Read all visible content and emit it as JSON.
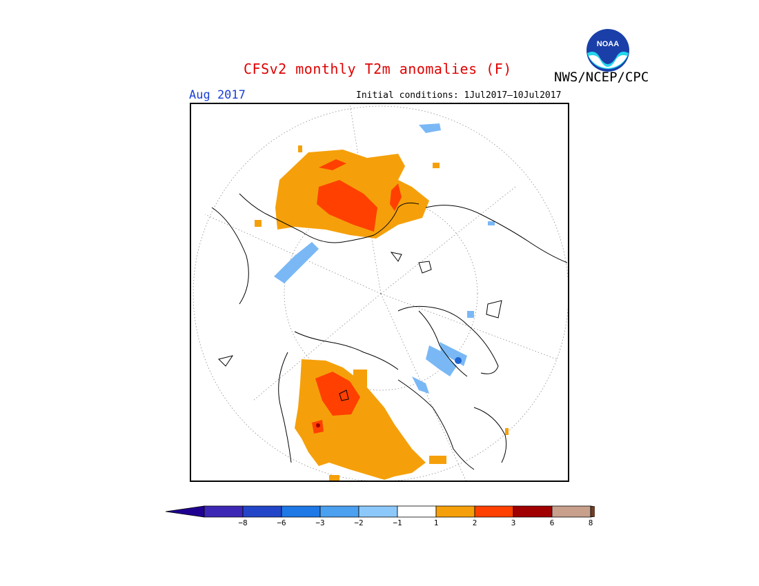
{
  "title": "CFSv2 monthly T2m anomalies (F)",
  "agency": "NWS/NCEP/CPC",
  "logo_text": "NOAA",
  "valid_month": "Aug 2017",
  "initial_conditions": "Initial conditions: 1Jul2017–10Jul2017",
  "colors": {
    "title": "#e00000",
    "month": "#1a3fd6",
    "warm_1_2": "#f5a00a",
    "warm_2_3": "#ff4000",
    "warm_3_6": "#a00000",
    "cool_1_2": "#7ab8f5",
    "cool_2_3": "#4a9aef",
    "cool_3_6": "#1e64d2"
  },
  "colorbar": {
    "extend_low_color": "#200090",
    "extend_high_color": "#6b3f2a",
    "bins": [
      {
        "color": "#3c28b4"
      },
      {
        "color": "#2346c8"
      },
      {
        "color": "#1e78e6"
      },
      {
        "color": "#4ba0f0"
      },
      {
        "color": "#8cc8fa"
      },
      {
        "color": "#ffffff"
      },
      {
        "color": "#f5a00a"
      },
      {
        "color": "#ff4000"
      },
      {
        "color": "#a00000"
      },
      {
        "color": "#c8a08c"
      }
    ],
    "ticks": [
      "−8",
      "−6",
      "−3",
      "−2",
      "−1",
      "1",
      "2",
      "3",
      "6",
      "8"
    ]
  }
}
